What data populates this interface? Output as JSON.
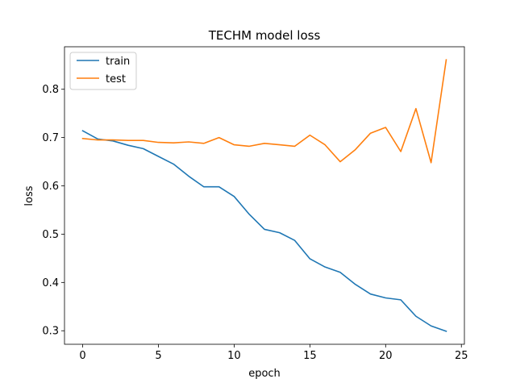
{
  "chart_data": {
    "type": "line",
    "title": "TECHM model loss",
    "xlabel": "epoch",
    "ylabel": "loss",
    "xlim": [
      -1.2,
      25.2
    ],
    "ylim": [
      0.272,
      0.888
    ],
    "xticks": [
      0,
      5,
      10,
      15,
      20,
      25
    ],
    "xtick_labels": [
      "0",
      "5",
      "10",
      "15",
      "20",
      "25"
    ],
    "yticks": [
      0.3,
      0.4,
      0.5,
      0.6,
      0.7,
      0.8
    ],
    "ytick_labels": [
      "0.3",
      "0.4",
      "0.5",
      "0.6",
      "0.7",
      "0.8"
    ],
    "grid": false,
    "legend_position": "upper-left",
    "x": [
      0,
      1,
      2,
      3,
      4,
      5,
      6,
      7,
      8,
      9,
      10,
      11,
      12,
      13,
      14,
      15,
      16,
      17,
      18,
      19,
      20,
      21,
      22,
      23,
      24
    ],
    "series": [
      {
        "name": "train",
        "color": "#1f77b4",
        "values": [
          0.714,
          0.697,
          0.693,
          0.684,
          0.677,
          0.661,
          0.645,
          0.62,
          0.598,
          0.598,
          0.578,
          0.541,
          0.51,
          0.503,
          0.487,
          0.449,
          0.432,
          0.421,
          0.396,
          0.376,
          0.368,
          0.364,
          0.33,
          0.31,
          0.299
        ]
      },
      {
        "name": "test",
        "color": "#ff7f0e",
        "values": [
          0.698,
          0.695,
          0.695,
          0.694,
          0.694,
          0.69,
          0.689,
          0.691,
          0.688,
          0.7,
          0.685,
          0.682,
          0.688,
          0.685,
          0.682,
          0.705,
          0.685,
          0.65,
          0.675,
          0.709,
          0.721,
          0.671,
          0.76,
          0.648,
          0.861
        ]
      }
    ]
  }
}
